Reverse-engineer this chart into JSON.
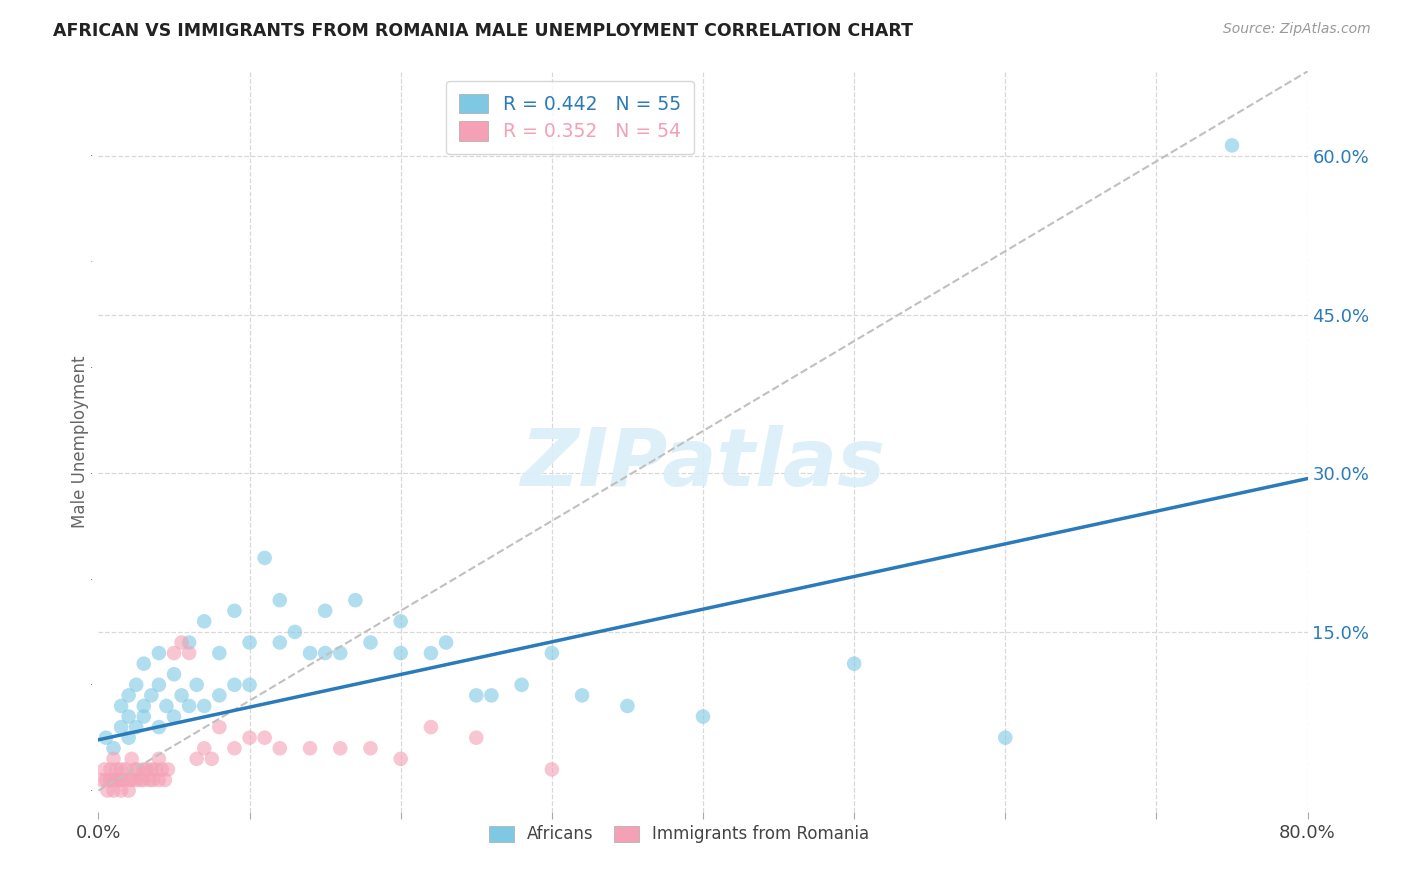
{
  "title": "AFRICAN VS IMMIGRANTS FROM ROMANIA MALE UNEMPLOYMENT CORRELATION CHART",
  "source": "Source: ZipAtlas.com",
  "ylabel": "Male Unemployment",
  "xlim": [
    0.0,
    0.8
  ],
  "ylim": [
    -0.02,
    0.68
  ],
  "africans_R": 0.442,
  "africans_N": 55,
  "romania_R": 0.352,
  "romania_N": 54,
  "africans_color": "#7ec8e3",
  "romania_color": "#f4a0b5",
  "trendline_african_color": "#2b7bba",
  "trendline_dashed_color": "#c0c0c0",
  "watermark_color": "#daeef8",
  "background_color": "#ffffff",
  "grid_color": "#d8d8d8",
  "africans_scatter_x": [
    0.005,
    0.01,
    0.015,
    0.015,
    0.02,
    0.02,
    0.02,
    0.025,
    0.025,
    0.03,
    0.03,
    0.03,
    0.035,
    0.04,
    0.04,
    0.04,
    0.045,
    0.05,
    0.05,
    0.055,
    0.06,
    0.06,
    0.065,
    0.07,
    0.07,
    0.08,
    0.08,
    0.09,
    0.09,
    0.1,
    0.1,
    0.11,
    0.12,
    0.12,
    0.13,
    0.14,
    0.15,
    0.15,
    0.16,
    0.17,
    0.18,
    0.2,
    0.2,
    0.22,
    0.23,
    0.25,
    0.26,
    0.28,
    0.3,
    0.32,
    0.35,
    0.4,
    0.5,
    0.6,
    0.75
  ],
  "africans_scatter_y": [
    0.05,
    0.04,
    0.06,
    0.08,
    0.05,
    0.07,
    0.09,
    0.06,
    0.1,
    0.07,
    0.08,
    0.12,
    0.09,
    0.06,
    0.1,
    0.13,
    0.08,
    0.07,
    0.11,
    0.09,
    0.08,
    0.14,
    0.1,
    0.08,
    0.16,
    0.09,
    0.13,
    0.1,
    0.17,
    0.1,
    0.14,
    0.22,
    0.14,
    0.18,
    0.15,
    0.13,
    0.13,
    0.17,
    0.13,
    0.18,
    0.14,
    0.13,
    0.16,
    0.13,
    0.14,
    0.09,
    0.09,
    0.1,
    0.13,
    0.09,
    0.08,
    0.07,
    0.12,
    0.05,
    0.61
  ],
  "romania_scatter_x": [
    0.002,
    0.004,
    0.005,
    0.006,
    0.008,
    0.008,
    0.01,
    0.01,
    0.01,
    0.012,
    0.012,
    0.014,
    0.015,
    0.015,
    0.016,
    0.018,
    0.02,
    0.02,
    0.022,
    0.022,
    0.024,
    0.025,
    0.026,
    0.028,
    0.03,
    0.03,
    0.032,
    0.034,
    0.035,
    0.036,
    0.038,
    0.04,
    0.04,
    0.042,
    0.044,
    0.046,
    0.05,
    0.055,
    0.06,
    0.065,
    0.07,
    0.075,
    0.08,
    0.09,
    0.1,
    0.11,
    0.12,
    0.14,
    0.16,
    0.18,
    0.2,
    0.22,
    0.25,
    0.3
  ],
  "romania_scatter_y": [
    0.01,
    0.02,
    0.01,
    0.0,
    0.01,
    0.02,
    0.0,
    0.01,
    0.03,
    0.01,
    0.02,
    0.01,
    0.0,
    0.02,
    0.01,
    0.02,
    0.0,
    0.01,
    0.01,
    0.03,
    0.02,
    0.01,
    0.02,
    0.01,
    0.01,
    0.02,
    0.02,
    0.01,
    0.02,
    0.01,
    0.02,
    0.01,
    0.03,
    0.02,
    0.01,
    0.02,
    0.13,
    0.14,
    0.13,
    0.03,
    0.04,
    0.03,
    0.06,
    0.04,
    0.05,
    0.05,
    0.04,
    0.04,
    0.04,
    0.04,
    0.03,
    0.06,
    0.05,
    0.02
  ],
  "trendline_african_x0": 0.0,
  "trendline_african_y0": 0.048,
  "trendline_african_x1": 0.8,
  "trendline_african_y1": 0.295,
  "trendline_romania_x0": 0.0,
  "trendline_romania_y0": 0.0,
  "trendline_romania_x1": 0.8,
  "trendline_romania_y1": 0.68
}
